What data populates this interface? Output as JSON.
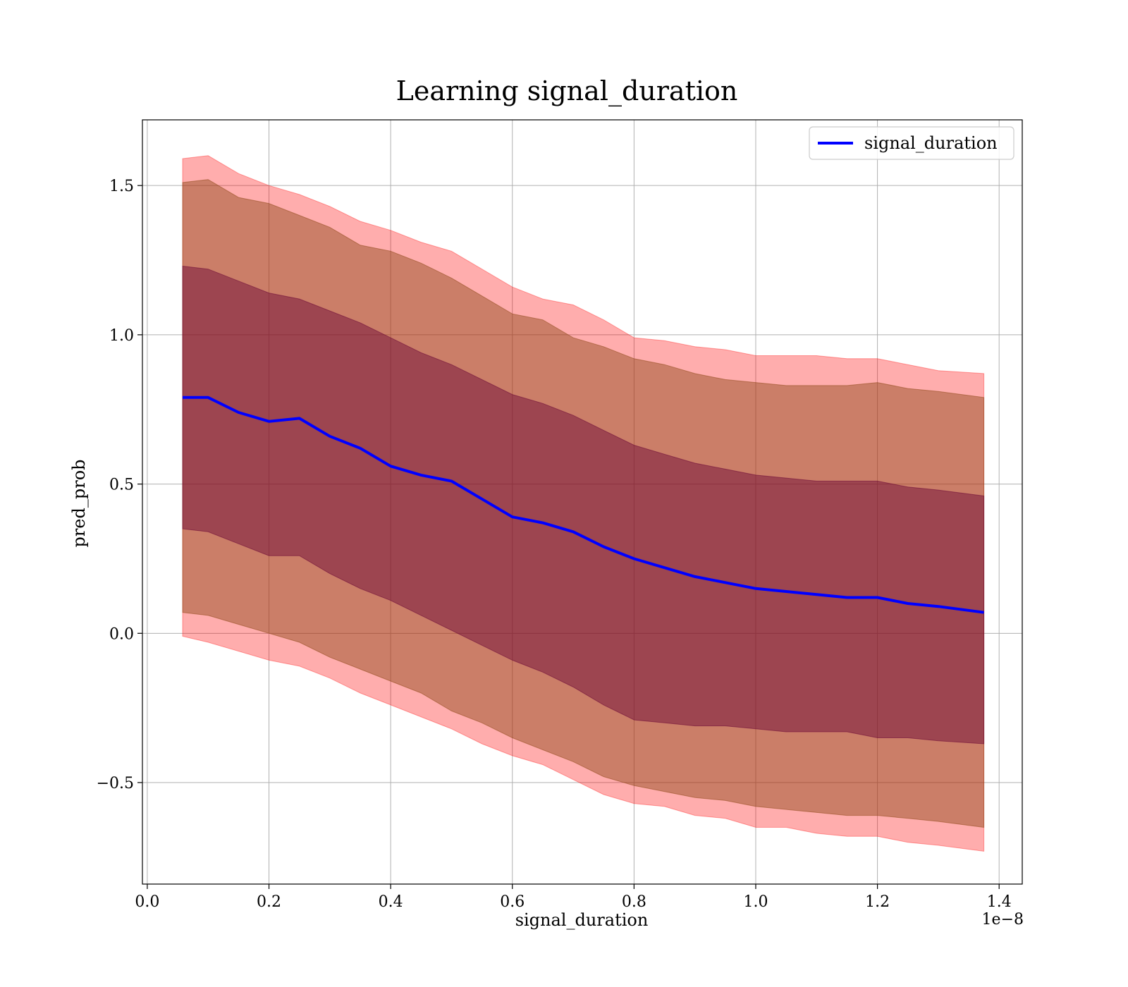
{
  "chart_data": {
    "type": "area",
    "title": "Learning signal_duration",
    "xlabel": "signal_duration",
    "ylabel": "pred_prob",
    "x_offset_label": "1e−8",
    "xlim": [
      -0.008,
      1.438
    ],
    "ylim": [
      -0.84,
      1.72
    ],
    "x_ticks": [
      0.0,
      0.2,
      0.4,
      0.6,
      0.8,
      1.0,
      1.2,
      1.4
    ],
    "x_tick_labels": [
      "0.0",
      "0.2",
      "0.4",
      "0.6",
      "0.8",
      "1.0",
      "1.2",
      "1.4"
    ],
    "y_ticks": [
      -0.5,
      0.0,
      0.5,
      1.0,
      1.5
    ],
    "y_tick_labels": [
      "−0.5",
      "0.0",
      "0.5",
      "1.0",
      "1.5"
    ],
    "grid": true,
    "legend": {
      "position": "top-right",
      "entries": [
        "signal_duration"
      ]
    },
    "colors": {
      "line": "#0000ff",
      "band_outer": "#ff0000",
      "band_middle": "#8b4513",
      "band_inner": "#660033"
    },
    "x": [
      0.058,
      0.1,
      0.15,
      0.2,
      0.25,
      0.3,
      0.35,
      0.4,
      0.45,
      0.5,
      0.55,
      0.6,
      0.65,
      0.7,
      0.75,
      0.8,
      0.85,
      0.9,
      0.95,
      1.0,
      1.05,
      1.1,
      1.15,
      1.2,
      1.25,
      1.3,
      1.375
    ],
    "mean": [
      0.79,
      0.79,
      0.74,
      0.71,
      0.72,
      0.66,
      0.62,
      0.56,
      0.53,
      0.51,
      0.45,
      0.39,
      0.37,
      0.34,
      0.29,
      0.25,
      0.22,
      0.19,
      0.17,
      0.15,
      0.14,
      0.13,
      0.12,
      0.12,
      0.1,
      0.09,
      0.07
    ],
    "band_1sd_upper": [
      1.23,
      1.22,
      1.18,
      1.14,
      1.12,
      1.08,
      1.04,
      0.99,
      0.94,
      0.9,
      0.85,
      0.8,
      0.77,
      0.73,
      0.68,
      0.63,
      0.6,
      0.57,
      0.55,
      0.53,
      0.52,
      0.51,
      0.51,
      0.51,
      0.49,
      0.48,
      0.46
    ],
    "band_1sd_lower": [
      0.35,
      0.34,
      0.3,
      0.26,
      0.26,
      0.2,
      0.15,
      0.11,
      0.06,
      0.01,
      -0.04,
      -0.09,
      -0.13,
      -0.18,
      -0.24,
      -0.29,
      -0.3,
      -0.31,
      -0.31,
      -0.32,
      -0.33,
      -0.33,
      -0.33,
      -0.35,
      -0.35,
      -0.36,
      -0.37
    ],
    "band_2sd_upper": [
      1.51,
      1.52,
      1.46,
      1.44,
      1.4,
      1.36,
      1.3,
      1.28,
      1.24,
      1.19,
      1.13,
      1.07,
      1.05,
      0.99,
      0.96,
      0.92,
      0.9,
      0.87,
      0.85,
      0.84,
      0.83,
      0.83,
      0.83,
      0.84,
      0.82,
      0.81,
      0.79
    ],
    "band_2sd_lower": [
      0.07,
      0.06,
      0.03,
      0.0,
      -0.03,
      -0.08,
      -0.12,
      -0.16,
      -0.2,
      -0.26,
      -0.3,
      -0.35,
      -0.39,
      -0.43,
      -0.48,
      -0.51,
      -0.53,
      -0.55,
      -0.56,
      -0.58,
      -0.59,
      -0.6,
      -0.61,
      -0.61,
      -0.62,
      -0.63,
      -0.65
    ],
    "band_3sd_upper": [
      1.59,
      1.6,
      1.54,
      1.5,
      1.47,
      1.43,
      1.38,
      1.35,
      1.31,
      1.28,
      1.22,
      1.16,
      1.12,
      1.1,
      1.05,
      0.99,
      0.98,
      0.96,
      0.95,
      0.93,
      0.93,
      0.93,
      0.92,
      0.92,
      0.9,
      0.88,
      0.87
    ],
    "band_3sd_lower": [
      -0.01,
      -0.03,
      -0.06,
      -0.09,
      -0.11,
      -0.15,
      -0.2,
      -0.24,
      -0.28,
      -0.32,
      -0.37,
      -0.41,
      -0.44,
      -0.49,
      -0.54,
      -0.57,
      -0.58,
      -0.61,
      -0.62,
      -0.65,
      -0.65,
      -0.67,
      -0.68,
      -0.68,
      -0.7,
      -0.71,
      -0.73
    ]
  }
}
